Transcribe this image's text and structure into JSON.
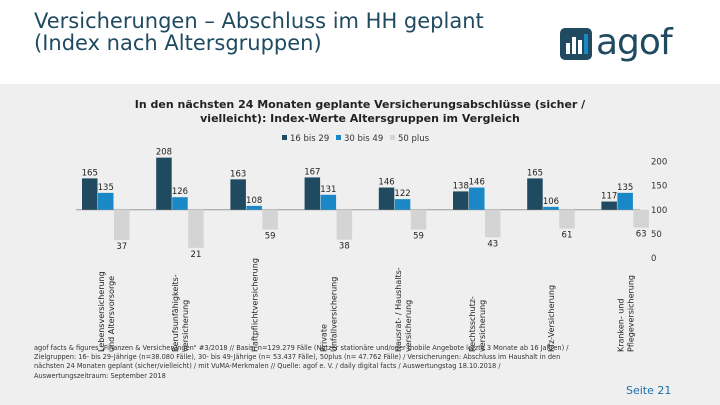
{
  "header": {
    "title_line1": "Versicherungen – Abschluss im HH geplant",
    "title_line2": "(Index nach Altersgruppen)",
    "logo_text": "agof"
  },
  "colors": {
    "series1": "#1f4a60",
    "series2": "#1a87c6",
    "series3": "#d4d4d4",
    "band": "#efefef"
  },
  "chart_data": {
    "type": "bar",
    "title": "In den nächsten 24 Monaten geplante Versicherungsabschlüsse (sicher / vielleicht): Index-Werte Altersgruppen im Vergleich",
    "title_line1": "In den nächsten 24 Monaten geplante Versicherungsabschlüsse (sicher /",
    "title_line2": "vielleicht): Index-Werte Altersgruppen im Vergleich",
    "legend_position": "top-center",
    "baseline": 100,
    "ylim": [
      0,
      200
    ],
    "yticks": [
      "0",
      "50",
      "100",
      "150",
      "200"
    ],
    "categories": [
      [
        "Lebensversicherung",
        "und Altersvorsorge"
      ],
      [
        "Berufsunfähigkeits-",
        "versicherung"
      ],
      [
        "Haftpflichtversicherung"
      ],
      [
        "Private",
        "Unfallversicherung"
      ],
      [
        "Hausrat- / Haushalts-",
        "versicherung"
      ],
      [
        "Rechtsschutz-",
        "versicherung"
      ],
      [
        "Kfz-Versicherung"
      ],
      [
        "Kranken- und",
        "Pflegeversicherung"
      ]
    ],
    "series": [
      {
        "name": "16 bis 29",
        "values": [
          165,
          208,
          163,
          167,
          146,
          138,
          165,
          117
        ]
      },
      {
        "name": "30 bis 49",
        "values": [
          135,
          126,
          108,
          131,
          122,
          146,
          106,
          135
        ]
      },
      {
        "name": "50 plus",
        "values": [
          37,
          21,
          59,
          38,
          59,
          43,
          61,
          63
        ]
      }
    ]
  },
  "footer": {
    "line1": "agof facts & figures „Finanzen & Versicherungen“ #3/2018 // Basis: n=129.279 Fälle (Nutzer stationäre und/oder mobile Angebote letzte 3 Monate ab 16 Jahren) /",
    "line2": "Zielgruppen: 16- bis 29-Jährige (n=38.080 Fälle), 30- bis 49-Jährige (n= 53.437 Fälle), 50plus (n= 47.762 Fälle) / Versicherungen: Abschluss im Haushalt in den",
    "line3": "nächsten 24 Monaten geplant (sicher/vielleicht) / mit VuMA-Merkmalen // Quelle: agof e. V. / daily digital facts / Auswertungstag 18.10.2018 /",
    "line4": "Auswertungszeitraum: September 2018"
  },
  "page_label": "Seite 21"
}
